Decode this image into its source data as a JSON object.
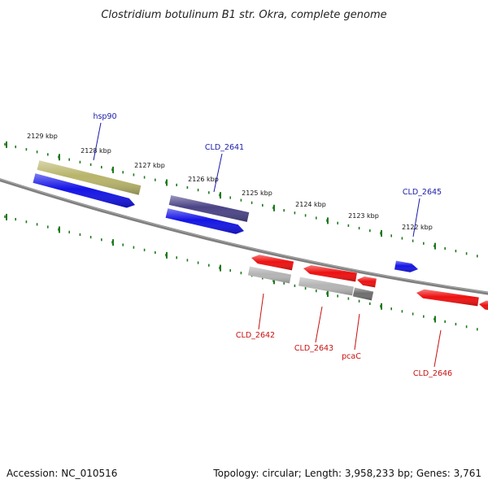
{
  "title": "Clostridium botulinum B1 str. Okra, complete genome",
  "footer": {
    "accession": "Accession: NC_010516",
    "summary": "Topology: circular; Length: 3,958,233 bp; Genes: 3,761"
  },
  "colors": {
    "backbone": "#7f7f7f",
    "tick": "#1e7a1e",
    "forward_label": "#1a1aa8",
    "reverse_label": "#c81010",
    "blue_gene": "#1414e6",
    "red_gene": "#ee1010",
    "olive_gene": "#b8b46a",
    "navy_gene": "#4a4386",
    "light_grey_gene": "#b4b4b4",
    "dark_grey_gene": "#6e6e6e"
  },
  "ticks": [
    {
      "label": "2129 kbp"
    },
    {
      "label": "2128 kbp"
    },
    {
      "label": "2127 kbp"
    },
    {
      "label": "2126 kbp"
    },
    {
      "label": "2125 kbp"
    },
    {
      "label": "2124 kbp"
    },
    {
      "label": "2123 kbp"
    },
    {
      "label": "2122 kbp"
    }
  ],
  "genes": [
    {
      "name": "hsp90",
      "strand": "forward"
    },
    {
      "name": "CLD_2641",
      "strand": "forward"
    },
    {
      "name": "CLD_2645",
      "strand": "forward"
    },
    {
      "name": "CLD_2642",
      "strand": "reverse"
    },
    {
      "name": "CLD_2643",
      "strand": "reverse"
    },
    {
      "name": "pcaC",
      "strand": "reverse"
    },
    {
      "name": "CLD_2646",
      "strand": "reverse"
    }
  ]
}
